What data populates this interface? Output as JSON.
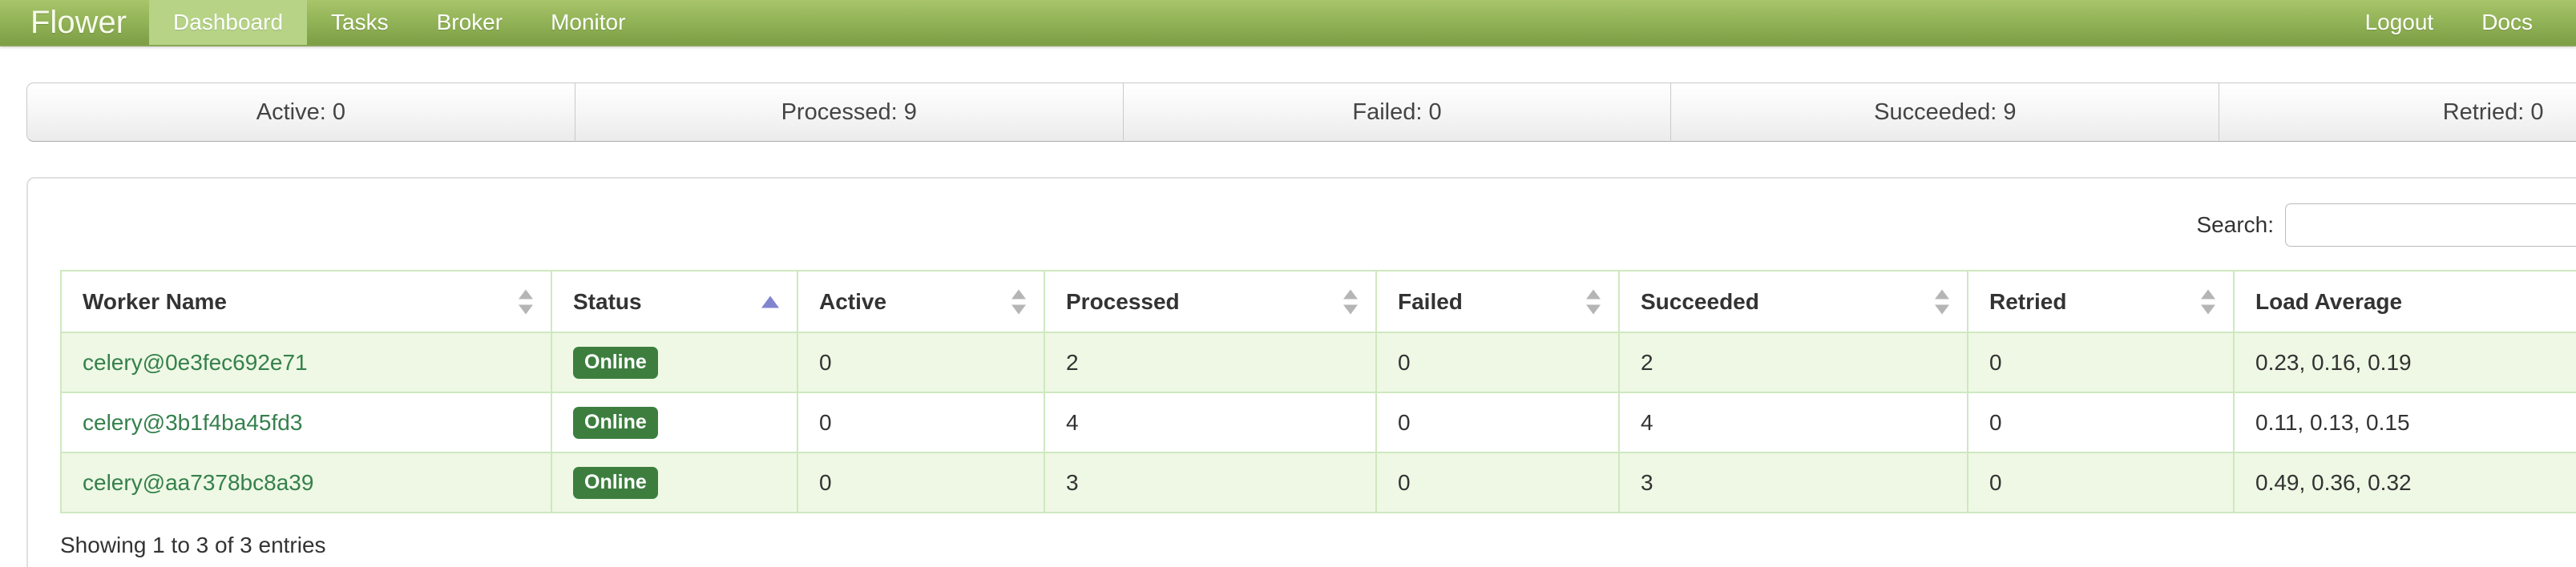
{
  "navbar": {
    "brand": "Flower",
    "items": [
      {
        "label": "Dashboard",
        "active": true
      },
      {
        "label": "Tasks",
        "active": false
      },
      {
        "label": "Broker",
        "active": false
      },
      {
        "label": "Monitor",
        "active": false
      }
    ],
    "right_items": [
      {
        "label": "Logout"
      },
      {
        "label": "Docs"
      }
    ]
  },
  "stats": [
    {
      "text": "Active: 0"
    },
    {
      "text": "Processed: 9"
    },
    {
      "text": "Failed: 0"
    },
    {
      "text": "Succeeded: 9"
    },
    {
      "text": "Retried: 0"
    }
  ],
  "search": {
    "label": "Search:",
    "value": ""
  },
  "table": {
    "columns": [
      {
        "label": "Worker Name",
        "sort": "both"
      },
      {
        "label": "Status",
        "sort": "asc"
      },
      {
        "label": "Active",
        "sort": "both"
      },
      {
        "label": "Processed",
        "sort": "both"
      },
      {
        "label": "Failed",
        "sort": "both"
      },
      {
        "label": "Succeeded",
        "sort": "both"
      },
      {
        "label": "Retried",
        "sort": "both"
      },
      {
        "label": "Load Average",
        "sort": "none"
      }
    ],
    "rows": [
      {
        "worker": "celery@0e3fec692e71",
        "status": "Online",
        "active": "0",
        "processed": "2",
        "failed": "0",
        "succeeded": "2",
        "retried": "0",
        "load_average": "0.23, 0.16, 0.19"
      },
      {
        "worker": "celery@3b1f4ba45fd3",
        "status": "Online",
        "active": "0",
        "processed": "4",
        "failed": "0",
        "succeeded": "4",
        "retried": "0",
        "load_average": "0.11, 0.13, 0.15"
      },
      {
        "worker": "celery@aa7378bc8a39",
        "status": "Online",
        "active": "0",
        "processed": "3",
        "failed": "0",
        "succeeded": "3",
        "retried": "0",
        "load_average": "0.49, 0.36, 0.32"
      }
    ],
    "footer": "Showing 1 to 3 of 3 entries"
  },
  "colors": {
    "navbar_top": "#a8c56a",
    "navbar_bottom": "#7d9e45",
    "nav_active_bg": "#b6d386",
    "table_border": "#cfe8c0",
    "row_stripe": "#eef8e4",
    "worker_link": "#35804c",
    "badge_online_bg": "#3d7e3f",
    "sort_active_arrow": "#8184cf"
  }
}
